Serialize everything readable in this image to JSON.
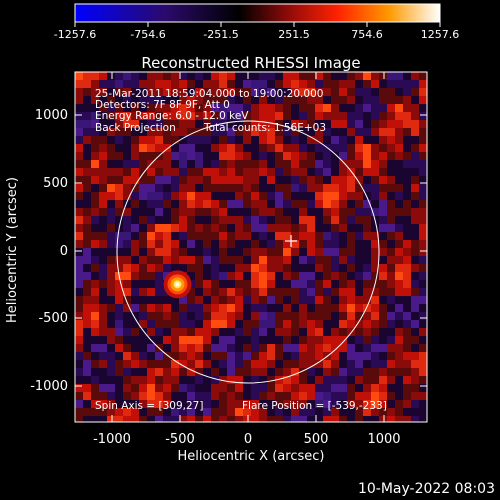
{
  "colorbar": {
    "tick_labels": [
      "-1257.6",
      "-754.6",
      "-251.5",
      "251.5",
      "754.6",
      "1257.6"
    ],
    "range": [
      -1257.6,
      1257.6
    ],
    "colormap": [
      "#0000ff",
      "#2a0a6a",
      "#000000",
      "#8b0a0a",
      "#ff2200",
      "#ff9900",
      "#ffffff"
    ]
  },
  "title": "Reconstructed RHESSI Image",
  "annotations": {
    "time_range": "25-Mar-2011 18:59:04.000 to 19:00:20.000",
    "detectors": "Detectors: 7F 8F 9F, Att 0",
    "energy_range": "Energy Range: 6.0 - 12.0 keV",
    "method": "Back Projection",
    "total_counts": "Total counts: 1.56E+03",
    "spin_axis": "Spin Axis = [309,27]",
    "flare_position": "Flare Position = [-539,-233]"
  },
  "axes": {
    "x_label": "Heliocentric X (arcsec)",
    "y_label": "Heliocentric Y (arcsec)",
    "x_ticks": [
      "-1000",
      "-500",
      "0",
      "500",
      "1000"
    ],
    "y_ticks": [
      "1000",
      "500",
      "0",
      "-500",
      "-1000"
    ],
    "x_tick_values": [
      -1000,
      -500,
      0,
      500,
      1000
    ],
    "y_tick_values": [
      1000,
      500,
      0,
      -500,
      -1000
    ],
    "x_range": [
      -1290,
      1290
    ],
    "y_range": [
      -1240,
      1320
    ]
  },
  "solar_limb": {
    "center": [
      0,
      0
    ],
    "radius_arcsec": 965
  },
  "spin_axis_marker": {
    "x": 309,
    "y": 27
  },
  "bright_source": {
    "x": -539,
    "y": -233
  },
  "footer_date": "10-May-2022 08:03"
}
